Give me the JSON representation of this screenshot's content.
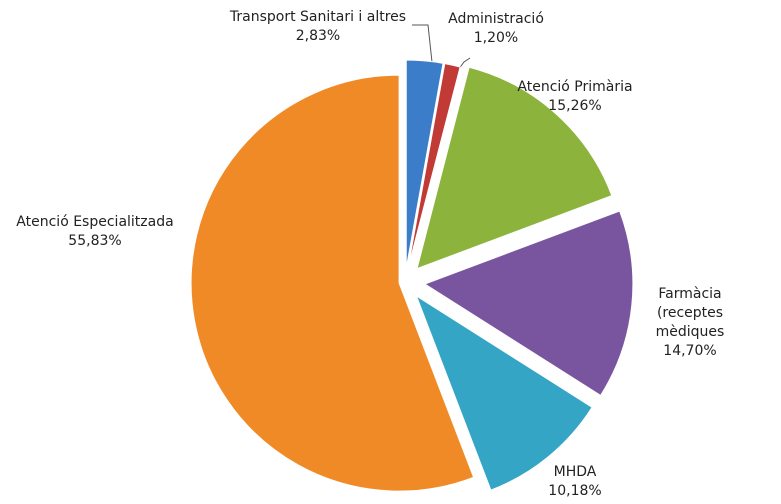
{
  "chart_data": {
    "type": "pie",
    "categories": [
      "Transport Sanitari i altres",
      "Administració",
      "Atenció Primària",
      "Farmàcia (receptes mèdiques",
      "MHDA",
      "Atenció Especialitzada"
    ],
    "values": [
      2.83,
      1.2,
      15.26,
      14.7,
      10.18,
      55.83
    ],
    "value_labels": [
      "2,83%",
      "1,20%",
      "15,26%",
      "14,70%",
      "10,18%",
      "55,83%"
    ],
    "colors": [
      "#3b7dc8",
      "#c23a35",
      "#8cb33c",
      "#7a559f",
      "#35a5c5",
      "#f08a26"
    ]
  }
}
